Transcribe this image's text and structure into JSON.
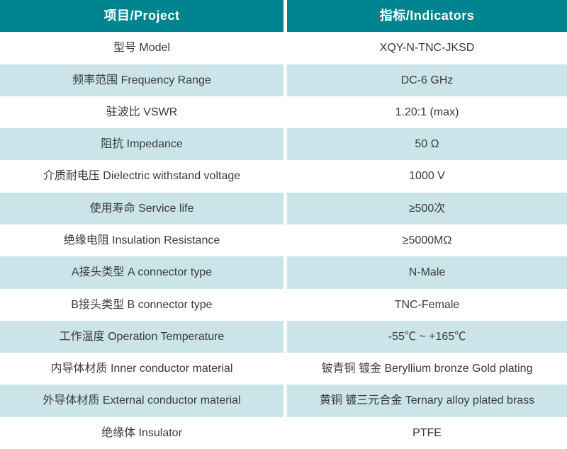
{
  "table": {
    "header": {
      "project": "项目/Project",
      "indicators": "指标/Indicators"
    },
    "rows": [
      {
        "project": "型号 Model",
        "indicator": "XQY-N-TNC-JKSD"
      },
      {
        "project": "频率范围 Frequency Range",
        "indicator": "DC-6 GHz"
      },
      {
        "project": "驻波比 VSWR",
        "indicator": "1.20:1 (max)"
      },
      {
        "project": "阻抗 Impedance",
        "indicator": "50 Ω"
      },
      {
        "project": "介质耐电压 Dielectric withstand voltage",
        "indicator": "1000 V"
      },
      {
        "project": "使用寿命 Service life",
        "indicator": "≥500次"
      },
      {
        "project": "绝缘电阻 Insulation Resistance",
        "indicator": "≥5000MΩ"
      },
      {
        "project": "A接头类型 A connector type",
        "indicator": "N-Male"
      },
      {
        "project": "B接头类型 B connector type",
        "indicator": "TNC-Female"
      },
      {
        "project": "工作温度 Operation Temperature",
        "indicator": "-55℃ ~ +165℃"
      },
      {
        "project": "内导体材质 Inner conductor material",
        "indicator": "铍青铜 镀金 Beryllium bronze Gold plating"
      },
      {
        "project": "外导体材质 External conductor material",
        "indicator": "黄铜 镀三元合金 Ternary alloy plated brass"
      },
      {
        "project": "绝缘体 Insulator",
        "indicator": "PTFE"
      }
    ],
    "colors": {
      "header_bg": "#00848f",
      "header_text": "#ffffff",
      "row_bg": "#ffffff",
      "row_alt_bg": "#cbe4ea",
      "body_text": "#3a3a3a",
      "divider": "#ffffff"
    }
  }
}
